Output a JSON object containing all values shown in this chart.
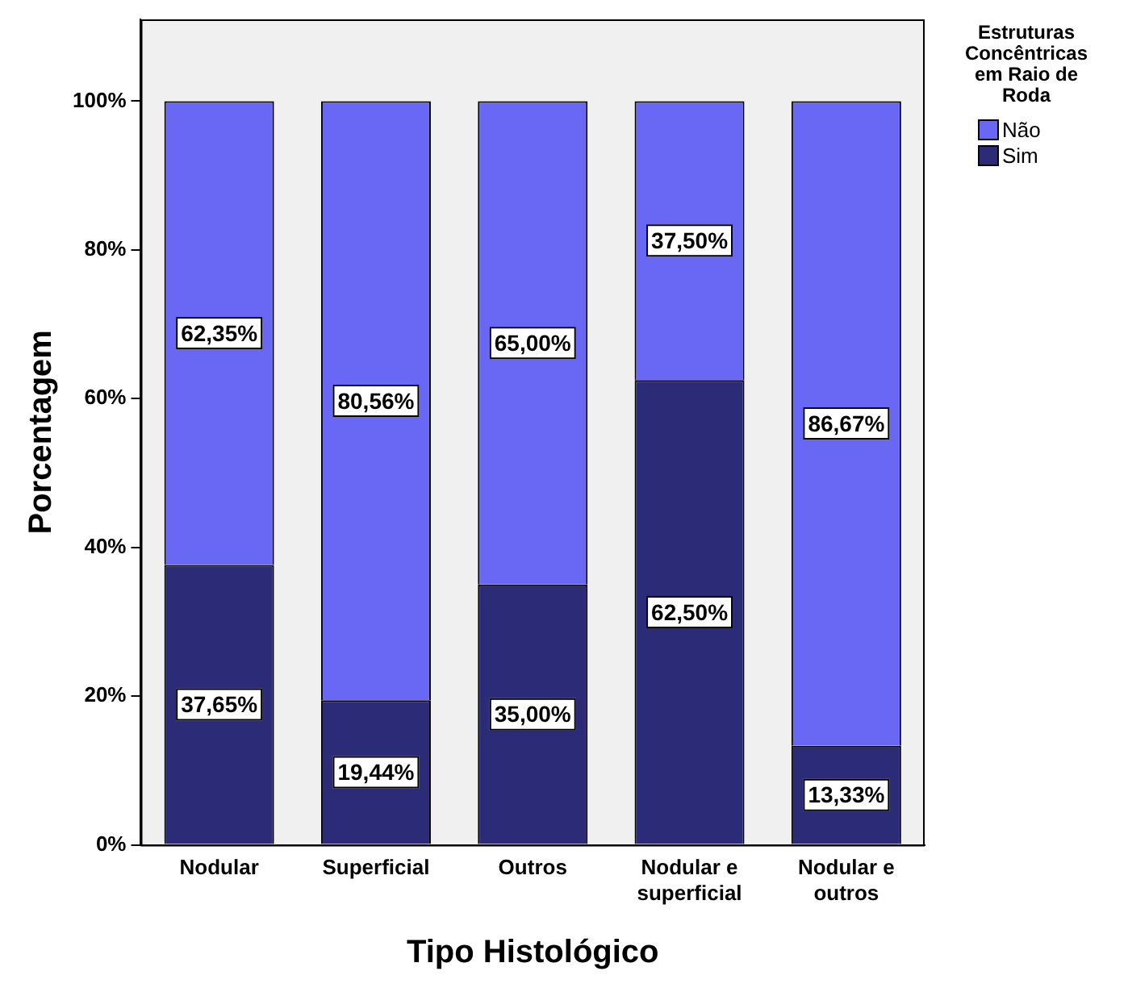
{
  "chart_data": {
    "type": "bar",
    "stacked": true,
    "xlabel": "Tipo Histológico",
    "ylabel": "Porcentagem",
    "legend_title": "Estruturas Concêntricas em Raio de Roda",
    "legend": "right",
    "categories": [
      "Nodular",
      "Superficial",
      "Outros",
      "Nodular e superficial",
      "Nodular e outros"
    ],
    "series": [
      {
        "name": "Sim",
        "color": "#2b2b78",
        "values": [
          37.65,
          19.44,
          35.0,
          62.5,
          13.33
        ],
        "value_labels": [
          "37,65%",
          "19,44%",
          "35,00%",
          "62,50%",
          "13,33%"
        ]
      },
      {
        "name": "Não",
        "color": "#6868f5",
        "values": [
          62.35,
          80.56,
          65.0,
          37.5,
          86.67
        ],
        "value_labels": [
          "62,35%",
          "80,56%",
          "65,00%",
          "37,50%",
          "86,67%"
        ]
      }
    ],
    "ylim": [
      0,
      111
    ],
    "yticks": [
      {
        "value": 0,
        "label": "0%"
      },
      {
        "value": 20,
        "label": "20%"
      },
      {
        "value": 40,
        "label": "40%"
      },
      {
        "value": 60,
        "label": "60%"
      },
      {
        "value": 80,
        "label": "80%"
      },
      {
        "value": 100,
        "label": "100%"
      }
    ],
    "grid": false
  }
}
